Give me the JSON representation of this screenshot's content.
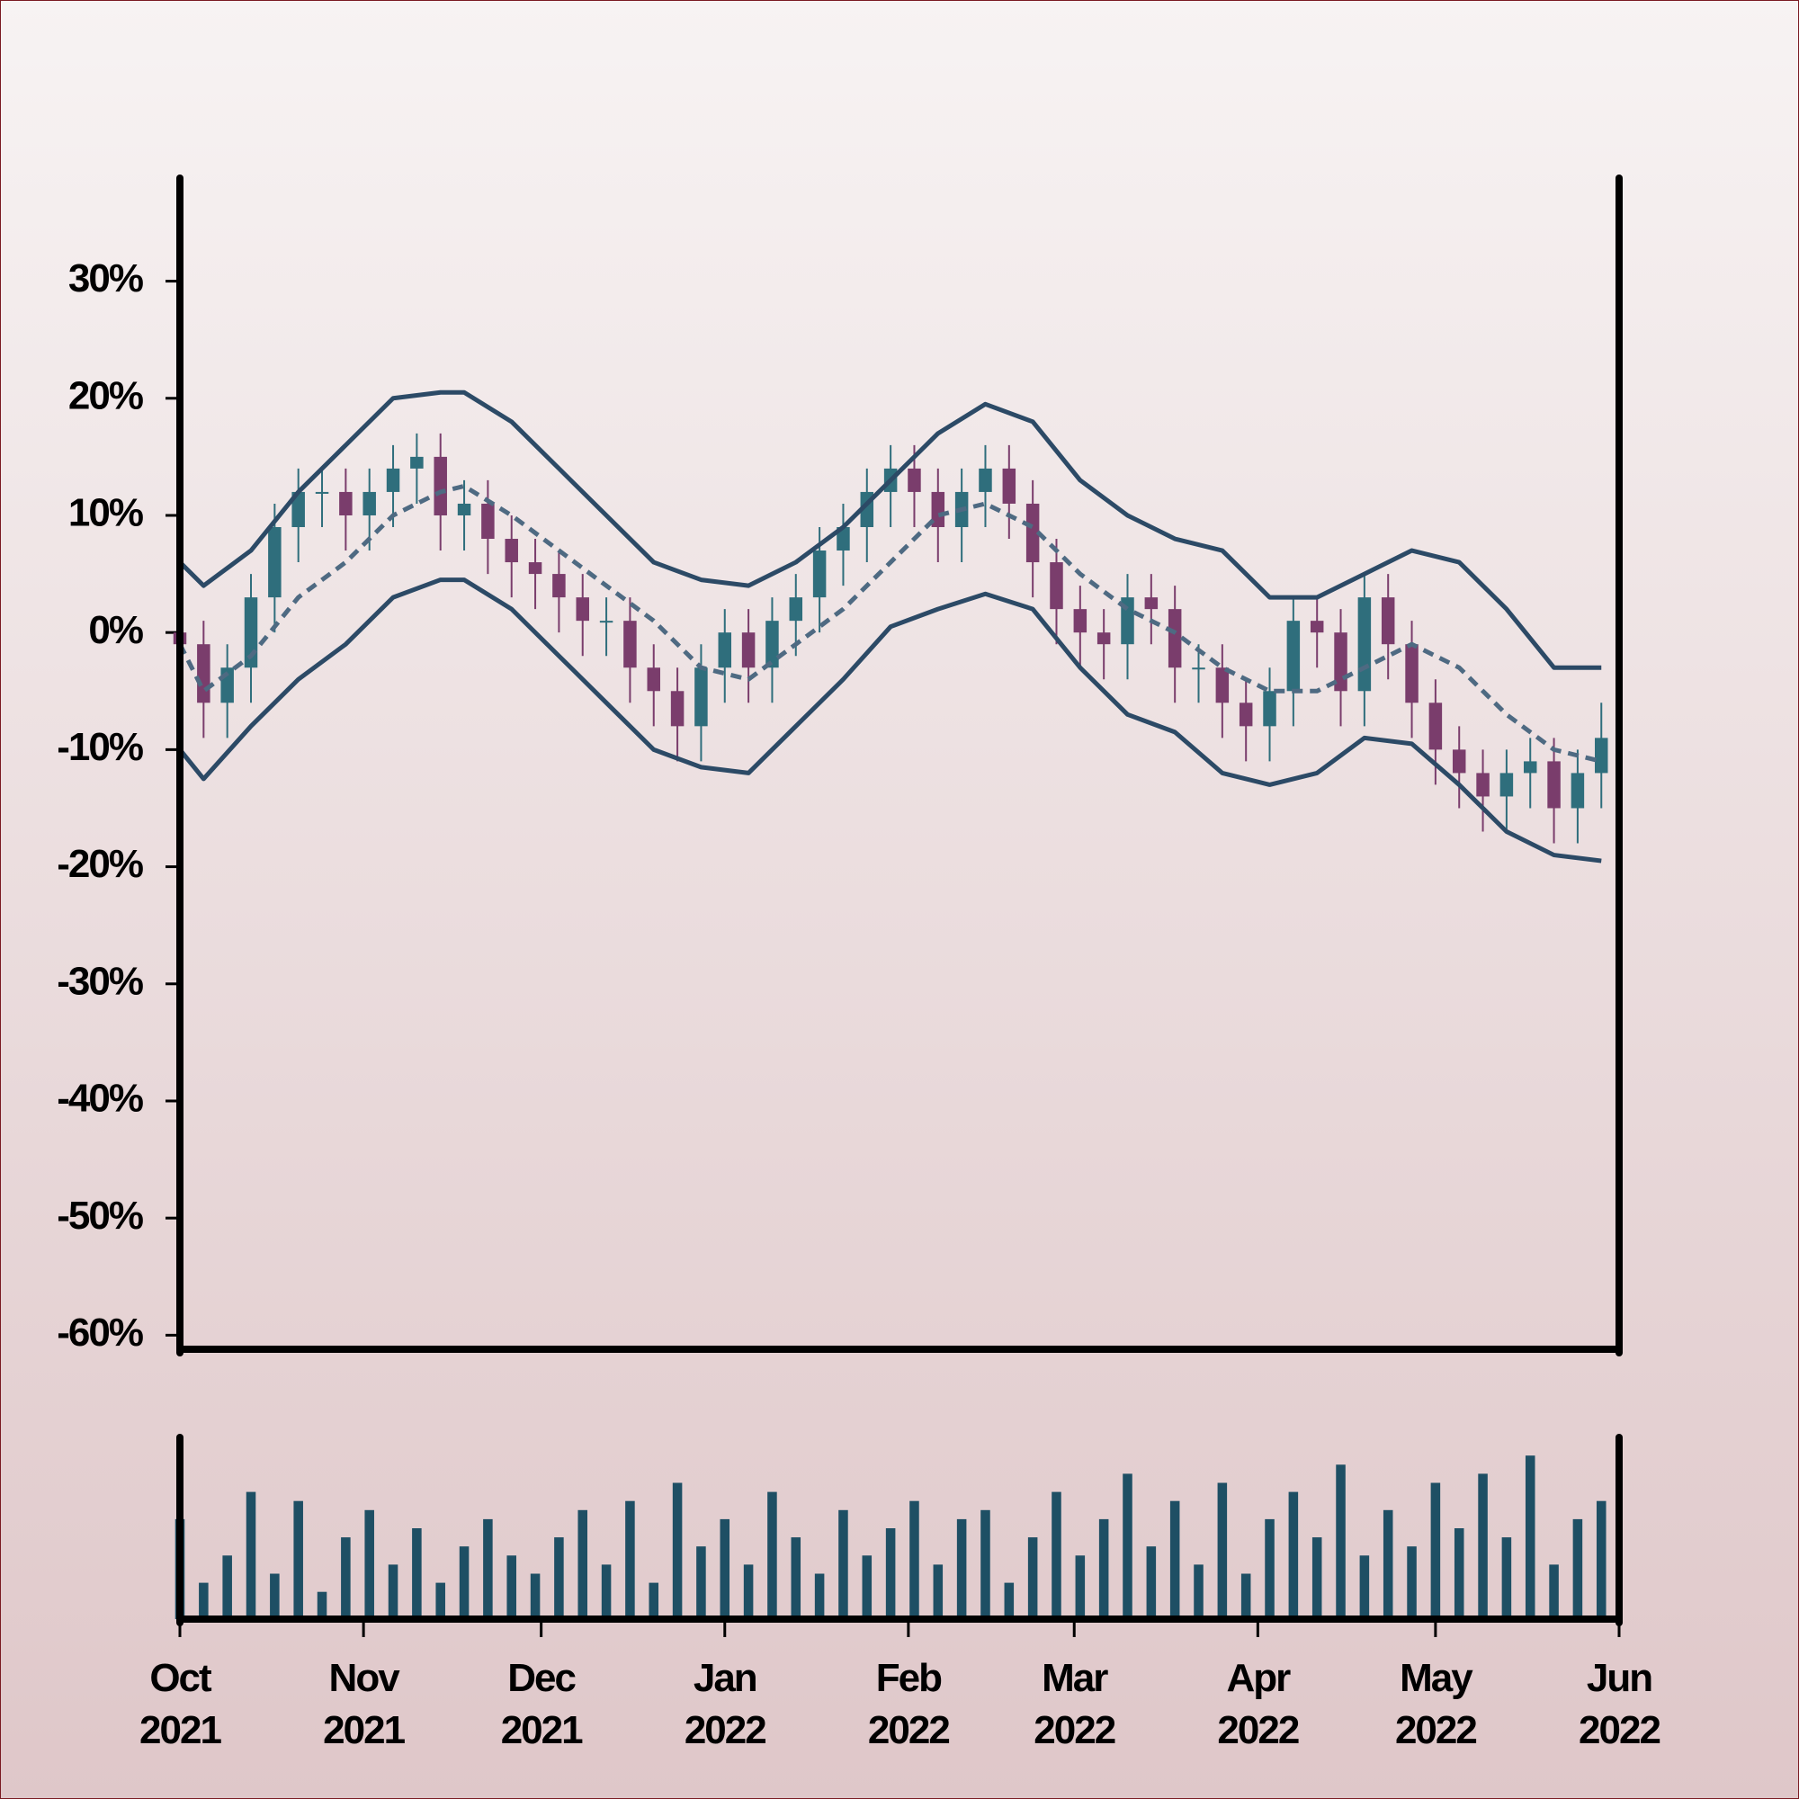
{
  "chart_data": [
    {
      "type": "candlestick",
      "x": [
        0,
        4,
        8,
        12,
        16,
        20,
        24,
        28,
        32,
        36,
        40,
        44,
        48,
        52,
        56,
        60,
        64,
        68,
        72,
        76,
        80,
        84,
        88,
        92,
        96,
        100,
        104,
        108,
        112,
        116,
        120,
        124,
        128,
        132,
        136,
        140,
        144,
        148,
        152,
        156,
        160,
        164,
        168,
        172,
        176,
        180,
        184,
        188,
        192,
        196,
        200,
        204,
        208,
        212,
        216,
        220,
        224,
        228,
        232,
        236,
        240
      ],
      "open": [
        0,
        -1,
        -6,
        -3,
        3,
        9,
        12,
        12,
        10,
        12,
        14,
        15,
        10,
        11,
        8,
        6,
        5,
        3,
        1,
        1,
        -3,
        -5,
        -8,
        -3,
        0,
        -3,
        1,
        3,
        7,
        9,
        12,
        14,
        12,
        9,
        12,
        14,
        11,
        6,
        2,
        0,
        -1,
        3,
        2,
        -3,
        -3,
        -6,
        -8,
        -5,
        1,
        0,
        -5,
        3,
        -1,
        -6,
        -10,
        -12,
        -14,
        -12,
        -11,
        -15,
        -12
      ],
      "high": [
        2,
        1,
        -1,
        5,
        11,
        14,
        14,
        14,
        14,
        16,
        17,
        17,
        13,
        13,
        10,
        8,
        7,
        5,
        3,
        3,
        -1,
        -3,
        -1,
        2,
        2,
        3,
        5,
        9,
        11,
        14,
        16,
        16,
        14,
        14,
        16,
        16,
        13,
        8,
        4,
        2,
        5,
        5,
        4,
        -1,
        -1,
        -4,
        -3,
        3,
        3,
        2,
        5,
        5,
        1,
        -4,
        -8,
        -10,
        -10,
        -9,
        -9,
        -10,
        -6
      ],
      "low": [
        -4,
        -9,
        -9,
        -6,
        0,
        6,
        9,
        7,
        7,
        9,
        11,
        7,
        7,
        5,
        3,
        2,
        0,
        -2,
        -2,
        -6,
        -8,
        -11,
        -11,
        -6,
        -6,
        -6,
        -2,
        0,
        4,
        6,
        9,
        9,
        6,
        6,
        9,
        8,
        3,
        -1,
        -3,
        -4,
        -4,
        -1,
        -6,
        -6,
        -9,
        -11,
        -11,
        -8,
        -3,
        -8,
        -8,
        -4,
        -9,
        -13,
        -15,
        -17,
        -17,
        -15,
        -18,
        -18,
        -15
      ],
      "close": [
        -1,
        -6,
        -3,
        3,
        9,
        12,
        12,
        10,
        12,
        14,
        15,
        10,
        11,
        8,
        6,
        5,
        3,
        1,
        1,
        -3,
        -5,
        -8,
        -3,
        0,
        -3,
        1,
        3,
        7,
        9,
        12,
        14,
        12,
        9,
        12,
        14,
        11,
        6,
        2,
        0,
        -1,
        3,
        2,
        -3,
        -3,
        -6,
        -8,
        -5,
        1,
        0,
        -5,
        3,
        -1,
        -6,
        -10,
        -12,
        -14,
        -12,
        -11,
        -15,
        -12,
        -9
      ],
      "up_color": "#2f6e7c",
      "down_color": "#7a3d6c",
      "lines": [
        {
          "color": "#2c4a66",
          "dashed": false,
          "x": [
            0,
            4,
            12,
            20,
            28,
            36,
            44,
            48,
            56,
            64,
            72,
            80,
            88,
            96,
            104,
            112,
            120,
            128,
            136,
            144,
            152,
            160,
            168,
            176,
            184,
            192,
            200,
            208,
            216,
            224,
            232,
            240
          ],
          "values": [
            6,
            4,
            7,
            12,
            16,
            20,
            20.5,
            20.5,
            18,
            14,
            10,
            6,
            4.5,
            4,
            6,
            9,
            13,
            17,
            19.5,
            18,
            13,
            10,
            8,
            7,
            3,
            3,
            5,
            7,
            6,
            2,
            -3,
            -3
          ]
        },
        {
          "color": "#4e6a82",
          "dashed": true,
          "x": [
            0,
            4,
            12,
            20,
            28,
            36,
            44,
            48,
            56,
            64,
            72,
            80,
            88,
            96,
            104,
            112,
            120,
            128,
            136,
            144,
            152,
            160,
            168,
            176,
            184,
            192,
            200,
            208,
            216,
            224,
            232,
            240
          ],
          "values": [
            -1,
            -5,
            -2,
            3,
            6,
            10,
            12,
            12.5,
            10,
            7,
            4,
            1,
            -3,
            -4,
            -1,
            2,
            6,
            10,
            11,
            9,
            5,
            2,
            0,
            -3,
            -5,
            -5,
            -3,
            -1,
            -3,
            -7,
            -10,
            -11
          ]
        },
        {
          "color": "#2c4a66",
          "dashed": false,
          "x": [
            0,
            4,
            12,
            20,
            28,
            36,
            44,
            48,
            56,
            64,
            72,
            80,
            88,
            96,
            104,
            112,
            120,
            128,
            136,
            144,
            152,
            160,
            168,
            176,
            184,
            192,
            200,
            208,
            216,
            224,
            232,
            240
          ],
          "values": [
            -10,
            -12.5,
            -8,
            -4,
            -1,
            3,
            4.5,
            4.5,
            2,
            -2,
            -6,
            -10,
            -11.5,
            -12,
            -8,
            -4,
            0.5,
            2,
            3.3,
            2,
            -3,
            -7,
            -8.5,
            -12,
            -13,
            -12,
            -9,
            -9.5,
            -13,
            -17,
            -19,
            -19.5
          ]
        }
      ],
      "xlim": [
        0,
        243
      ],
      "ylim": [
        -61.2,
        38.8
      ],
      "yticks": [
        {
          "value": 30,
          "label": "30%"
        },
        {
          "value": 20,
          "label": "20%"
        },
        {
          "value": 10,
          "label": "10%"
        },
        {
          "value": 0,
          "label": "0%"
        },
        {
          "value": -10,
          "label": "-10%"
        },
        {
          "value": -20,
          "label": "-20%"
        },
        {
          "value": -30,
          "label": "-30%"
        },
        {
          "value": -40,
          "label": "-40%"
        },
        {
          "value": -50,
          "label": "-50%"
        },
        {
          "value": -60,
          "label": "-60%"
        }
      ]
    },
    {
      "type": "bar",
      "x": [
        0,
        4,
        8,
        12,
        16,
        20,
        24,
        28,
        32,
        36,
        40,
        44,
        48,
        52,
        56,
        60,
        64,
        68,
        72,
        76,
        80,
        84,
        88,
        92,
        96,
        100,
        104,
        108,
        112,
        116,
        120,
        124,
        128,
        132,
        136,
        140,
        144,
        148,
        152,
        156,
        160,
        164,
        168,
        172,
        176,
        180,
        184,
        188,
        192,
        196,
        200,
        204,
        208,
        212,
        216,
        220,
        224,
        228,
        232,
        236,
        240
      ],
      "values": [
        55,
        20,
        35,
        70,
        25,
        65,
        15,
        45,
        60,
        30,
        50,
        20,
        40,
        55,
        35,
        25,
        45,
        60,
        30,
        65,
        20,
        75,
        40,
        55,
        30,
        70,
        45,
        25,
        60,
        35,
        50,
        65,
        30,
        55,
        60,
        20,
        45,
        70,
        35,
        55,
        80,
        40,
        65,
        30,
        75,
        25,
        55,
        70,
        45,
        85,
        35,
        60,
        40,
        75,
        50,
        80,
        45,
        90,
        30,
        55,
        65
      ],
      "color": "#1e4f64",
      "ylim": [
        0,
        100
      ],
      "xlim": [
        0,
        243
      ],
      "xticks": [
        {
          "value": 0,
          "label": "Oct\n2021"
        },
        {
          "value": 31,
          "label": "Nov\n2021"
        },
        {
          "value": 61,
          "label": "Dec\n2021"
        },
        {
          "value": 92,
          "label": "Jan\n2022"
        },
        {
          "value": 123,
          "label": "Feb\n2022"
        },
        {
          "value": 151,
          "label": "Mar\n2022"
        },
        {
          "value": 182,
          "label": "Apr\n2022"
        },
        {
          "value": 212,
          "label": "May\n2022"
        },
        {
          "value": 243,
          "label": "Jun\n2022"
        }
      ]
    }
  ]
}
